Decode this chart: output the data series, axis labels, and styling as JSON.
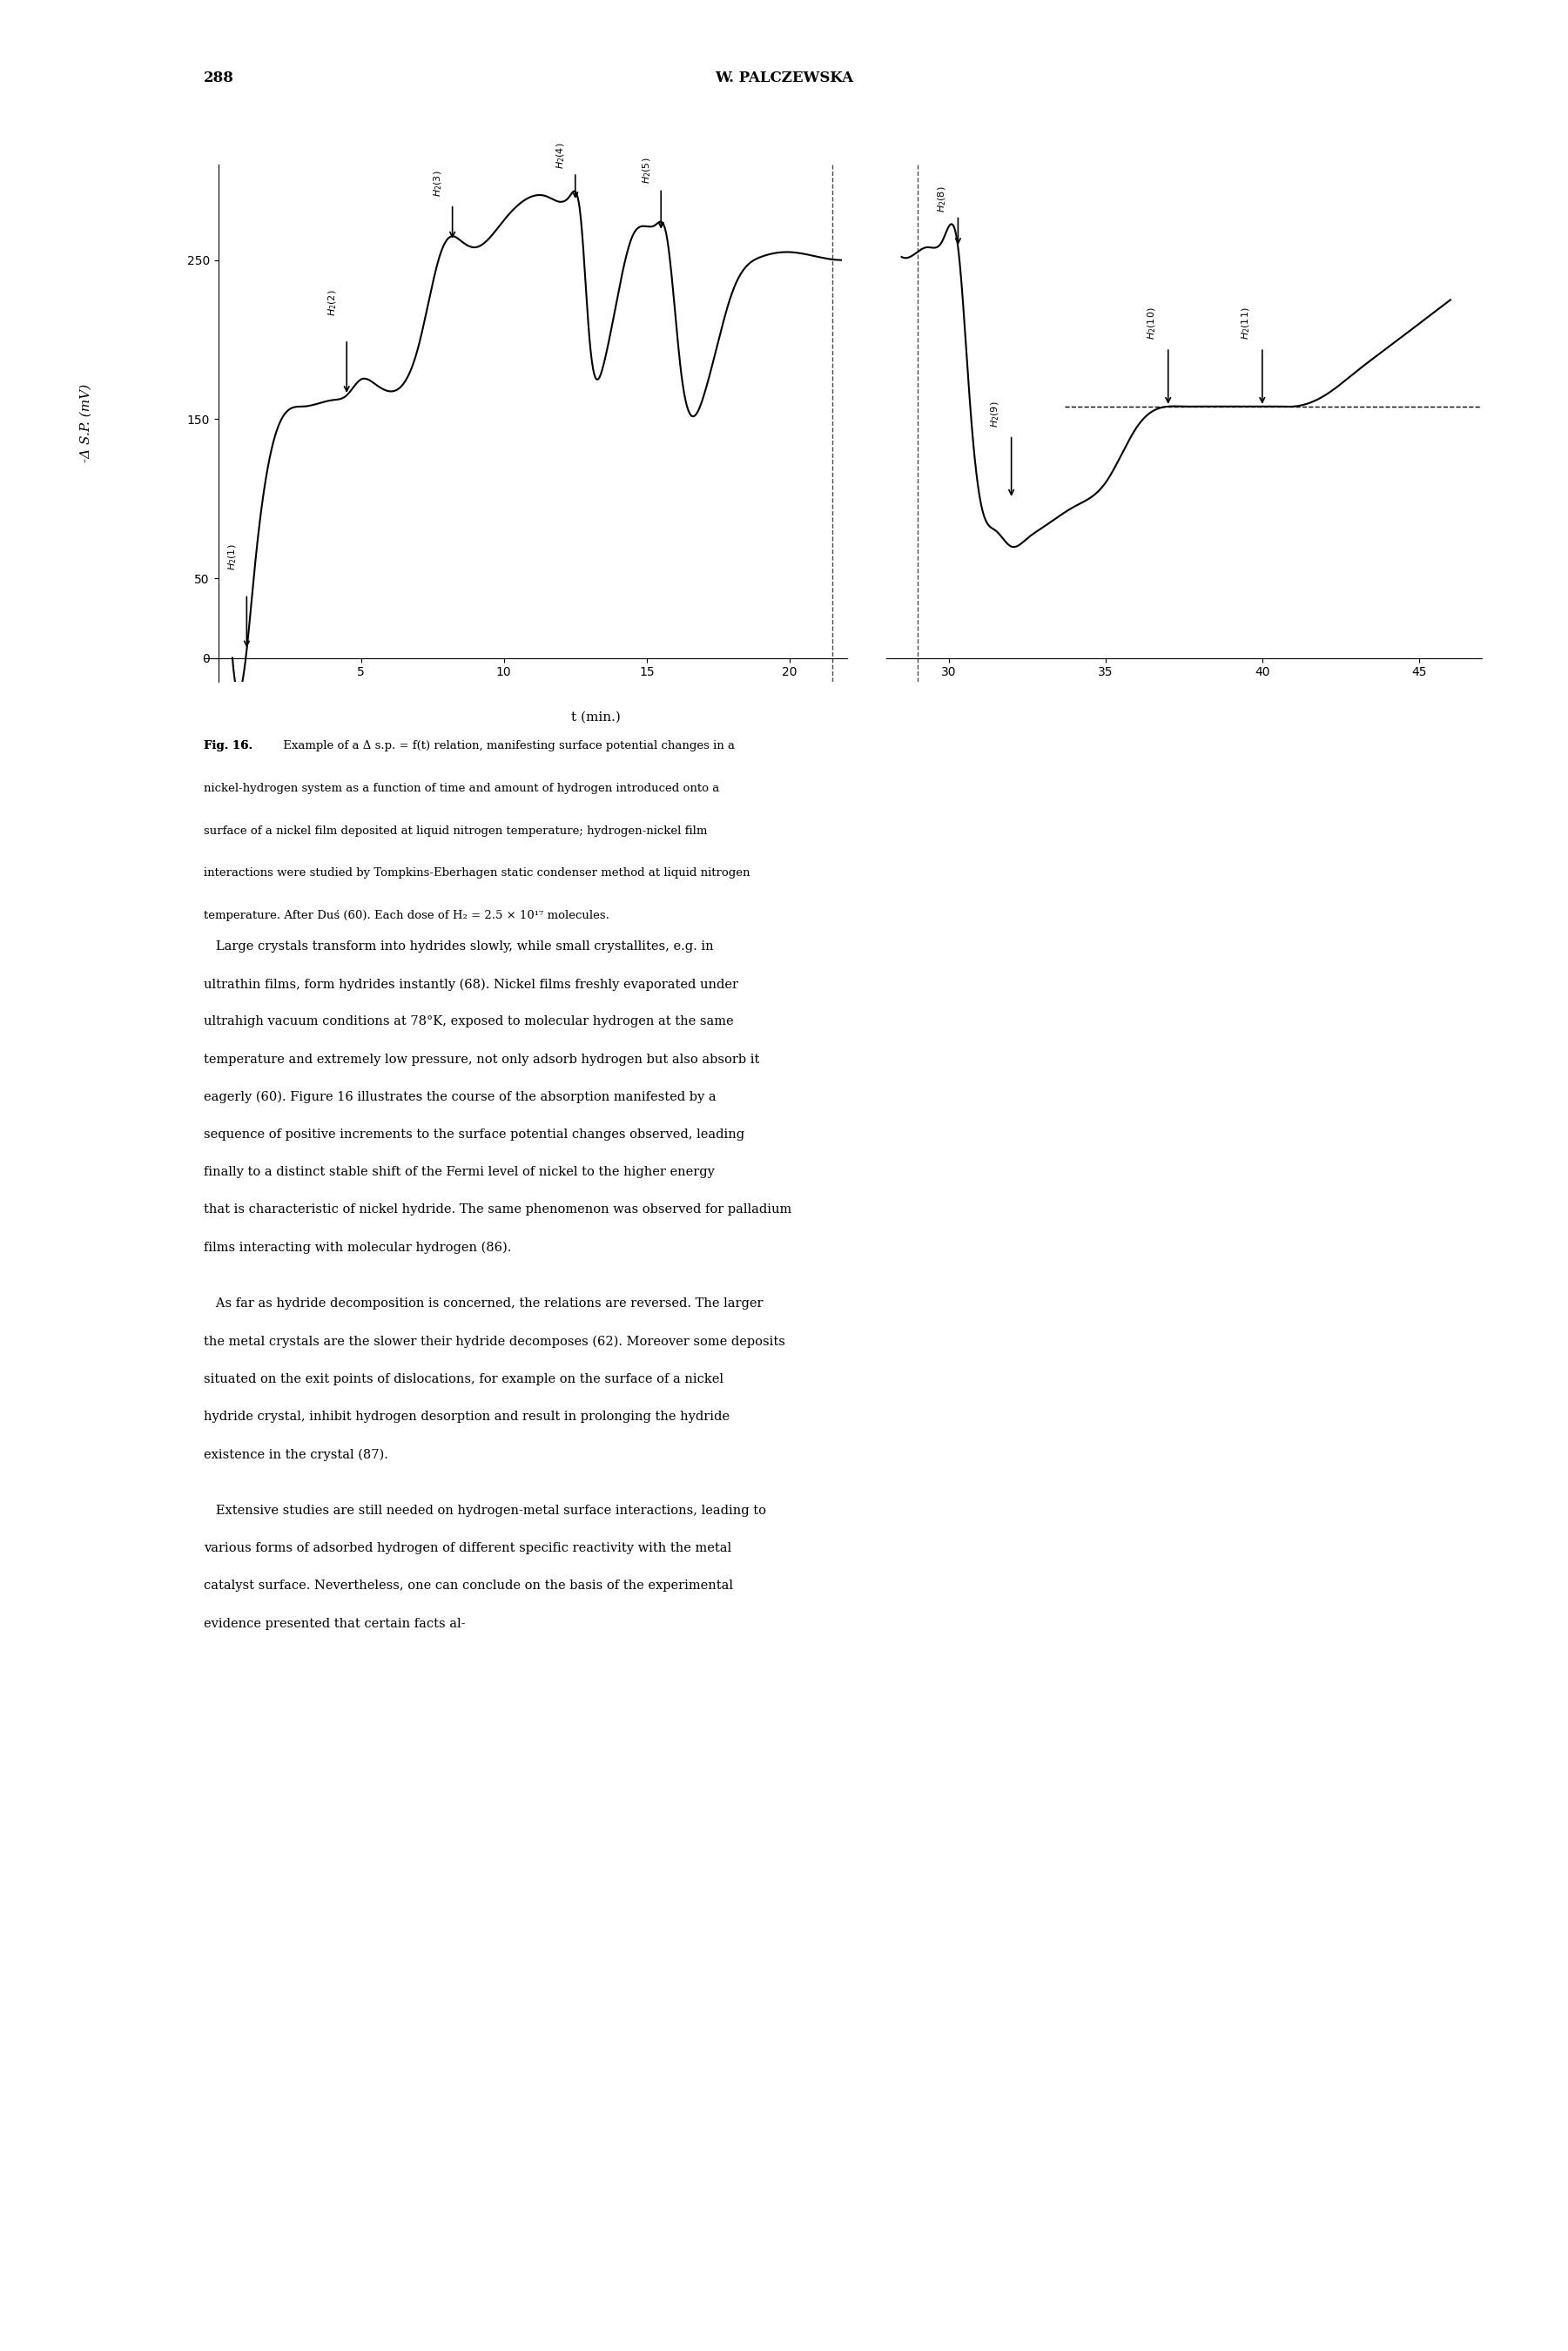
{
  "page_number": "288",
  "page_header": "W. PALCZEWSKA",
  "ylabel": "-Δ S.P. (mV)",
  "xlabel": "t (min.)",
  "yticks": [
    0,
    50,
    150,
    250
  ],
  "xticks_left": [
    5,
    10,
    15,
    20
  ],
  "xticks_right": [
    30,
    35,
    40,
    45
  ],
  "xlim_left": [
    0,
    22
  ],
  "xlim_right": [
    28,
    47
  ],
  "ylim": [
    -10,
    300
  ],
  "dashed_level": 158,
  "caption_bold": "Fig. 16.",
  "caption_text": "Example of a Δ s.p. = f(t) relation, manifesting surface potential changes in a nickel-hydrogen system as a function of time and amount of hydrogen introduced onto a surface of a nickel film deposited at liquid nitrogen temperature; hydrogen-nickel film interactions were studied by Tompkins-Eberhagen static condenser method at liquid nitrogen temperature. After Duś (60). Each dose of H₂ = 2.5 × 10¹⁷ molecules.",
  "body_text": [
    "Large crystals transform into hydrides slowly, while small crystallites, e.g. in ultrathin films, form hydrides instantly (68). Nickel films freshly evaporated under ultrahigh vacuum conditions at 78°K, exposed to molecular hydrogen at the same temperature and extremely low pressure, not only adsorb hydrogen but also absorb it eagerly (60). Figure 16 illustrates the course of the absorption manifested by a sequence of positive increments to the surface potential changes observed, leading finally to a distinct stable shift of the Fermi level of nickel to the higher energy that is characteristic of nickel hydride. The same phenomenon was observed for palladium films interacting with molecular hydrogen (86).",
    "As far as hydride decomposition is concerned, the relations are reversed. The larger the metal crystals are the slower their hydride decomposes (62). Moreover some deposits situated on the exit points of dislocations, for example on the surface of a nickel hydride crystal, inhibit hydrogen desorption and result in prolonging the hydride existence in the crystal (87).",
    "Extensive studies are still needed on hydrogen-metal surface interactions, leading to various forms of adsorbed hydrogen of different specific reactivity with the metal catalyst surface. Nevertheless, one can conclude on the basis of the experimental evidence presented that certain facts al-"
  ],
  "background_color": "#ffffff",
  "line_color": "#000000"
}
